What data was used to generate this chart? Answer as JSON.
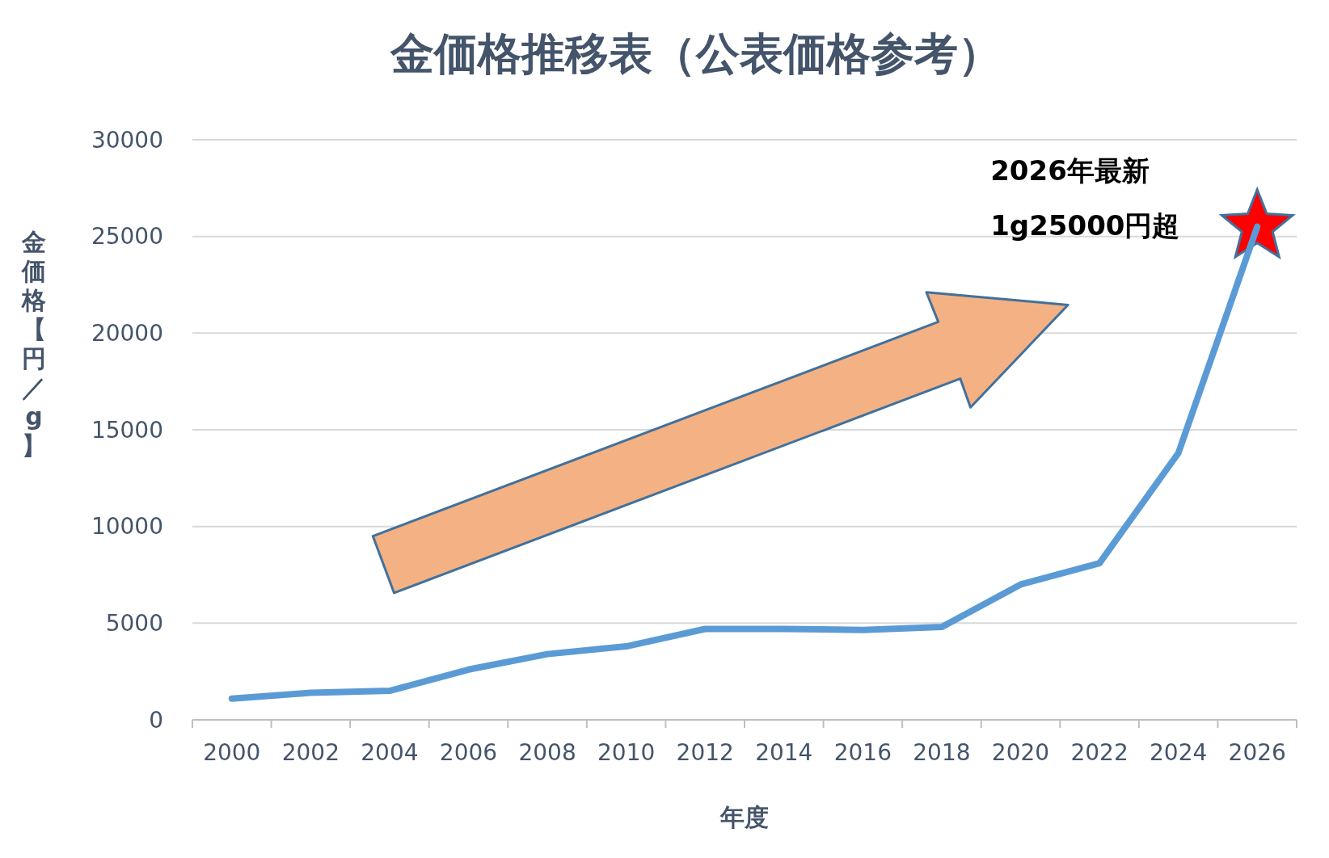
{
  "chart_data": {
    "type": "line",
    "title": "金価格推移表（公表価格参考）",
    "xlabel": "年度",
    "ylabel": "金価格【円／g】",
    "categories": [
      "2000",
      "2002",
      "2004",
      "2006",
      "2008",
      "2010",
      "2012",
      "2014",
      "2016",
      "2018",
      "2020",
      "2022",
      "2024",
      "2026"
    ],
    "series": [
      {
        "color": "#5b9bd5",
        "values": [
          1100,
          1400,
          1500,
          2600,
          3400,
          3800,
          4700,
          4700,
          4650,
          4800,
          7000,
          8100,
          13800,
          25500
        ]
      }
    ],
    "ylim": [
      0,
      30000
    ],
    "yticks": [
      0,
      5000,
      10000,
      15000,
      20000,
      25000,
      30000
    ],
    "grid": "y",
    "marker": "none",
    "line_style": "solid",
    "annotations": [
      {
        "text": "2026年最新\n1g25000円超",
        "x": "2026",
        "y": 25500
      }
    ]
  }
}
